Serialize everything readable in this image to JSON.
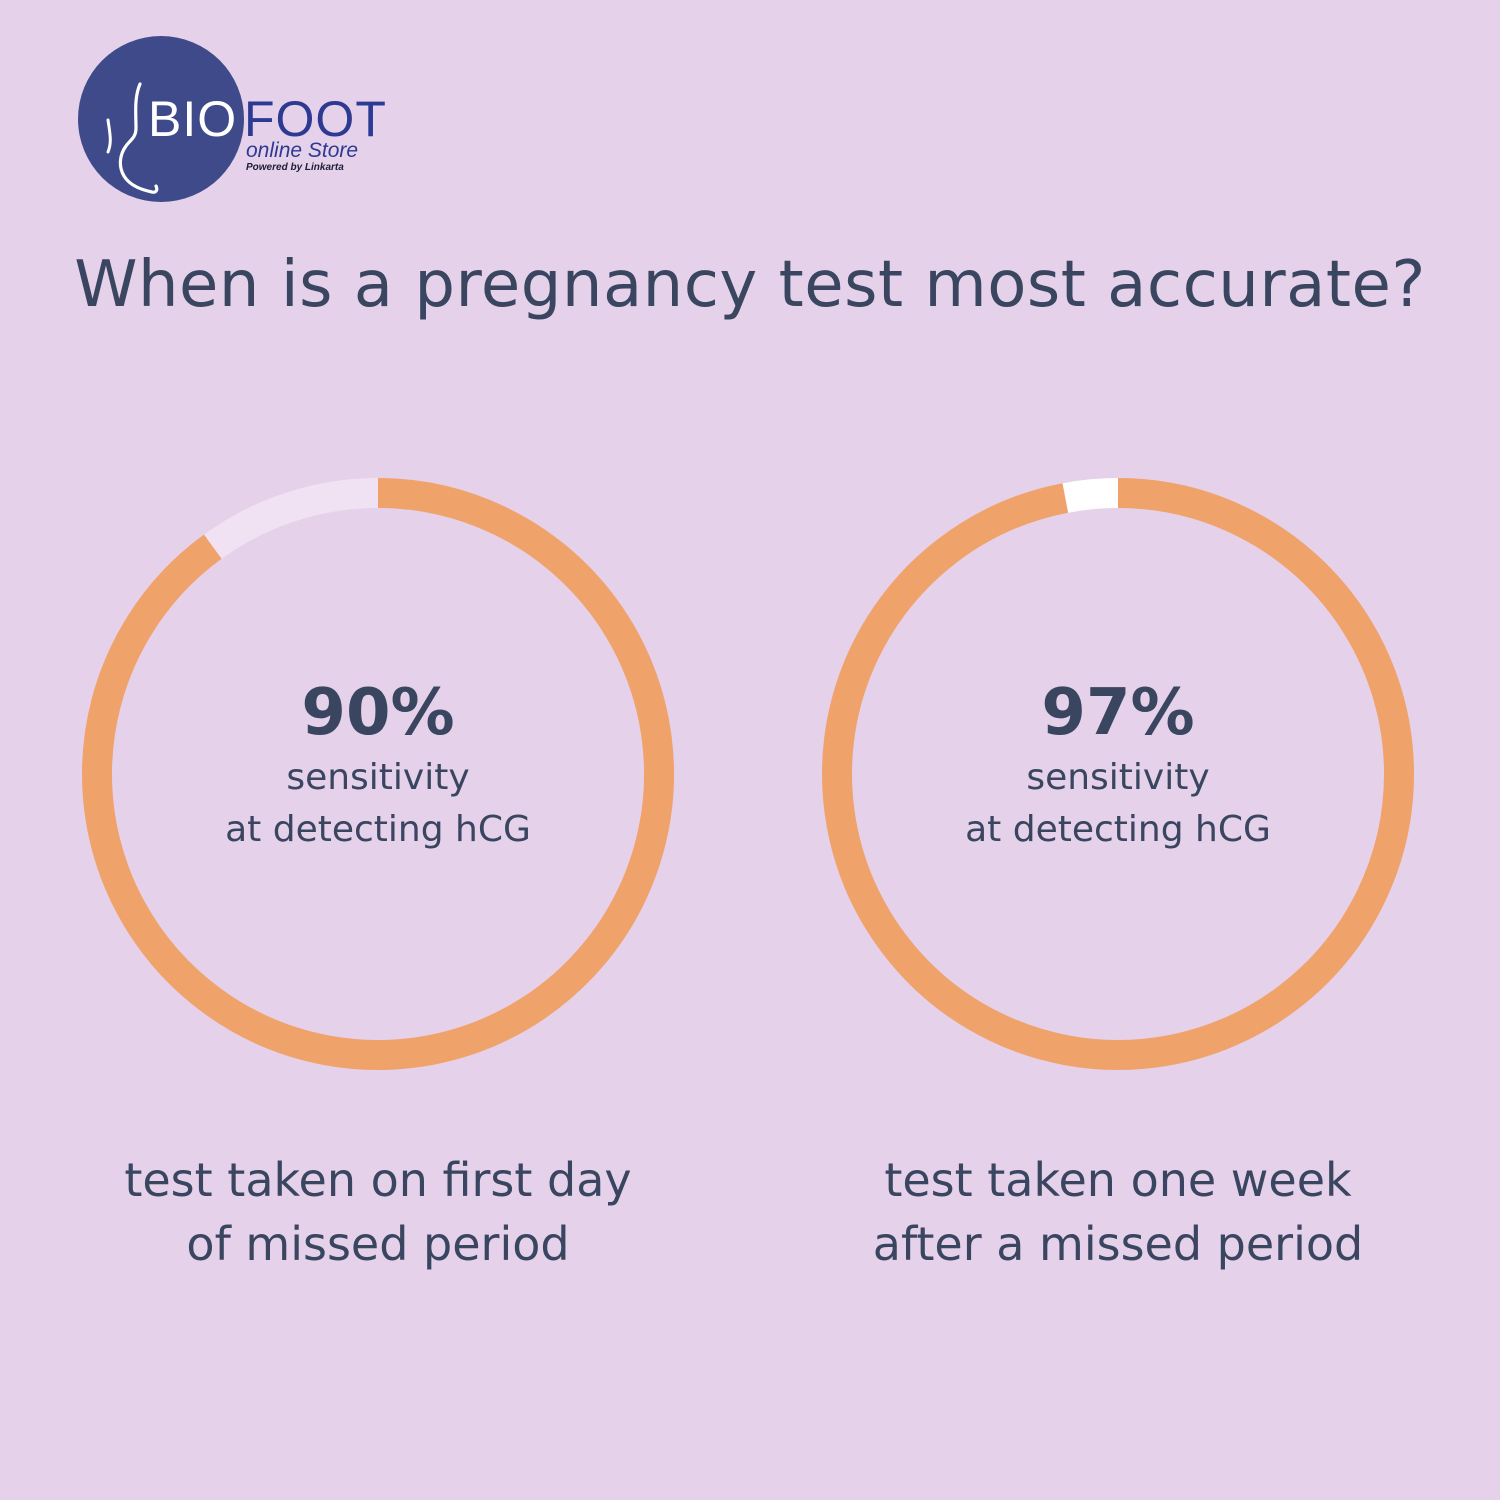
{
  "colors": {
    "background": "#e5d1ea",
    "text": "#3a4560",
    "ring_filled": "#f0a26b",
    "ring_empty_first": "#f0e2f3",
    "ring_empty_second": "#ffffff",
    "logo_circle": "#3f4a8a",
    "logo_blue": "#2d3a92"
  },
  "logo": {
    "brand_left": "BIO",
    "brand_right": "FOOT",
    "store": "online Store",
    "powered": "Powered by Linkarta",
    "icon": "foot-outline-icon"
  },
  "title": "When is a pregnancy test most accurate?",
  "chart_data": [
    {
      "type": "pie",
      "style": "donut",
      "values": [
        90,
        10
      ],
      "value_label": "90%",
      "center_lines": [
        "sensitivity",
        "at detecting hCG"
      ],
      "caption_lines": [
        "test taken on first day",
        "of missed period"
      ]
    },
    {
      "type": "pie",
      "style": "donut",
      "values": [
        97,
        3
      ],
      "value_label": "97%",
      "center_lines": [
        "sensitivity",
        "at detecting hCG"
      ],
      "caption_lines": [
        "test taken one week",
        "after a missed period"
      ]
    }
  ]
}
